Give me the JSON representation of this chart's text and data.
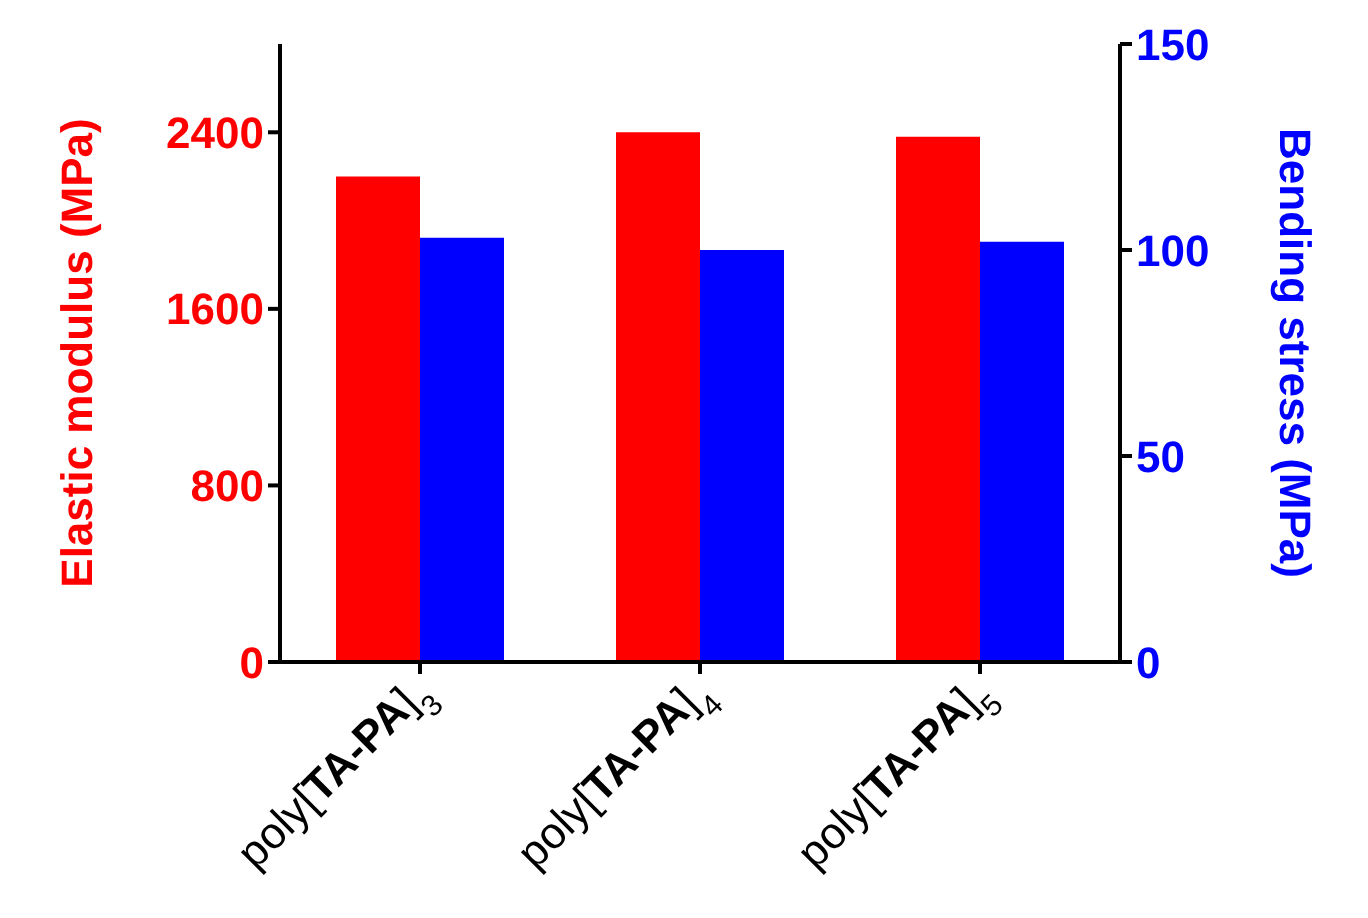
{
  "chart_data": {
    "type": "bar",
    "categories": [
      "poly[TA-PA]$_{3}$",
      "poly[TA-PA]$_{4}$",
      "poly[TA-PA]$_{5}$"
    ],
    "ylabel": "Elastic modulus (MPa)",
    "y2label": "Bending stress (MPa)",
    "series": [
      {
        "color": "#ff0000",
        "values": [
          2200,
          2400,
          2380
        ]
      },
      {
        "axis": "y2",
        "color": "#0000ff",
        "values": [
          103,
          100,
          102
        ]
      }
    ],
    "ylim": [
      0,
      2800
    ],
    "yticks": [
      0,
      800,
      1600,
      2400
    ],
    "y2lim": [
      0,
      150
    ],
    "y2ticks": [
      0,
      50,
      100,
      150
    ],
    "grid": false,
    "legend": false
  }
}
